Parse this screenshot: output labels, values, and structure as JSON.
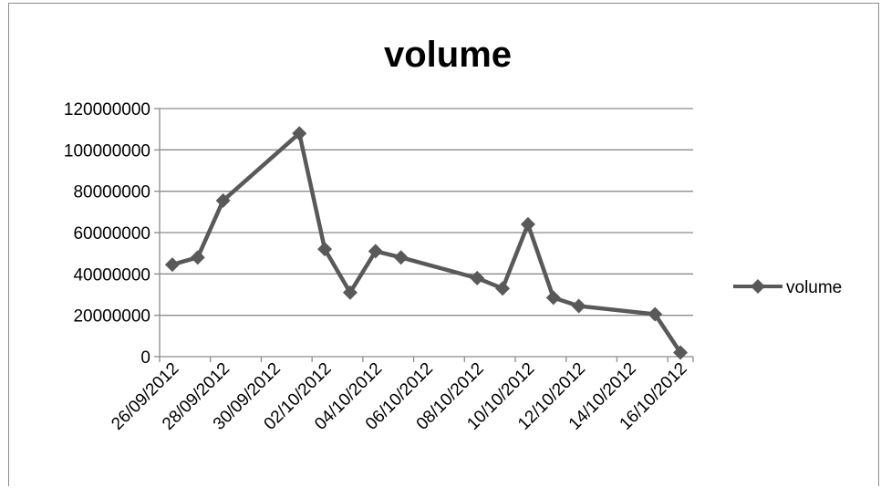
{
  "chart_data": {
    "type": "line",
    "title": "volume",
    "xlabel": "",
    "ylabel": "",
    "ylim": [
      0,
      120000000
    ],
    "y_ticks": [
      "0",
      "20000000",
      "40000000",
      "60000000",
      "80000000",
      "100000000",
      "120000000"
    ],
    "x_range": [
      "2012-09-26",
      "2012-10-17"
    ],
    "x_ticks": [
      "26/09/2012",
      "28/09/2012",
      "30/09/2012",
      "02/10/2012",
      "04/10/2012",
      "06/10/2012",
      "08/10/2012",
      "10/10/2012",
      "12/10/2012",
      "14/10/2012",
      "16/10/2012"
    ],
    "grid": true,
    "legend_position": "right",
    "series": [
      {
        "name": "volume",
        "color": "#595959",
        "marker": "diamond",
        "points": [
          {
            "x": "2012-09-26",
            "y": 44500000
          },
          {
            "x": "2012-09-27",
            "y": 48000000
          },
          {
            "x": "2012-09-28",
            "y": 75500000
          },
          {
            "x": "2012-10-01",
            "y": 108000000
          },
          {
            "x": "2012-10-02",
            "y": 52000000
          },
          {
            "x": "2012-10-03",
            "y": 31000000
          },
          {
            "x": "2012-10-04",
            "y": 51000000
          },
          {
            "x": "2012-10-05",
            "y": 48000000
          },
          {
            "x": "2012-10-08",
            "y": 38000000
          },
          {
            "x": "2012-10-09",
            "y": 33000000
          },
          {
            "x": "2012-10-10",
            "y": 64000000
          },
          {
            "x": "2012-10-11",
            "y": 28500000
          },
          {
            "x": "2012-10-12",
            "y": 24500000
          },
          {
            "x": "2012-10-15",
            "y": 20500000
          },
          {
            "x": "2012-10-16",
            "y": 2000000
          }
        ]
      }
    ]
  }
}
